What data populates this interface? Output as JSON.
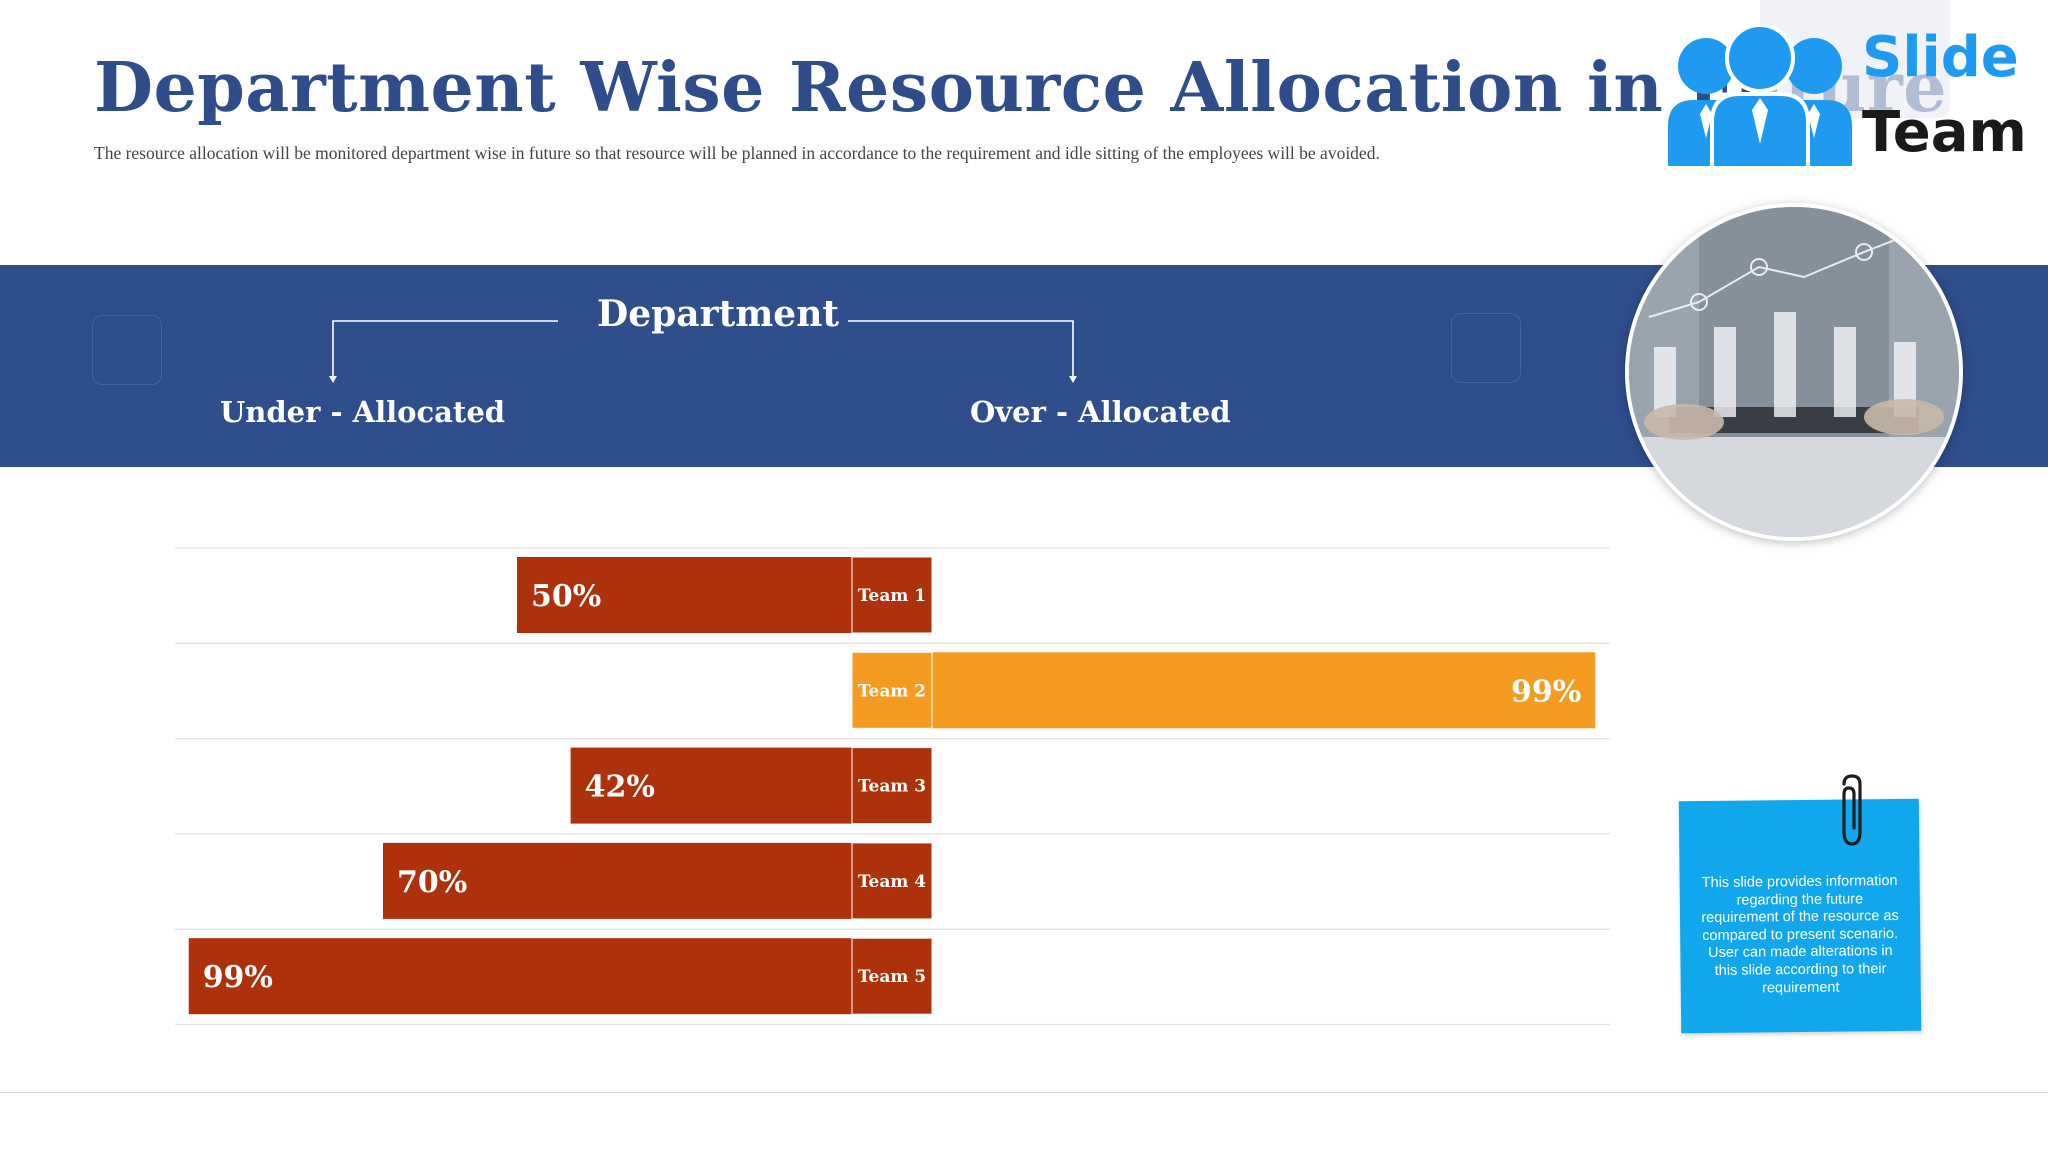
{
  "title": "Department Wise Resource Allocation in Future",
  "subtitle": "The resource allocation will be monitored department wise in future so that resource will be planned in accordance to the requirement and idle sitting of the employees will be avoided.",
  "logo": {
    "line1": "Slide",
    "line2": "Team",
    "icon": "team-people-icon"
  },
  "header_band": {
    "center_label": "Department",
    "left_label": "Under - Allocated",
    "right_label": "Over - Allocated"
  },
  "colors": {
    "band": "#2e4e8c",
    "title": "#2e4d8a",
    "under": "#ad310b",
    "over": "#f59b22",
    "note": "#11a7ec"
  },
  "chart_data": {
    "type": "bar",
    "orientation": "horizontal-diverging",
    "categories": [
      "Team 1",
      "Team 2",
      "Team 3",
      "Team 4",
      "Team 5"
    ],
    "series": [
      {
        "name": "Under - Allocated",
        "values": [
          50,
          0,
          42,
          70,
          99
        ]
      },
      {
        "name": "Over - Allocated",
        "values": [
          0,
          99,
          0,
          0,
          0
        ]
      }
    ],
    "value_labels": [
      "50%",
      "99%",
      "42%",
      "70%",
      "99%"
    ],
    "value_unit": "%",
    "xlim": [
      0,
      100
    ],
    "grid": "horizontal-row-lines"
  },
  "note": {
    "text": "This slide provides information regarding the future requirement of the resource as compared to present scenario. User can made alterations in this slide according to their requirement",
    "icon": "paperclip-icon"
  },
  "photo": {
    "icon": "business-chart-photo"
  }
}
